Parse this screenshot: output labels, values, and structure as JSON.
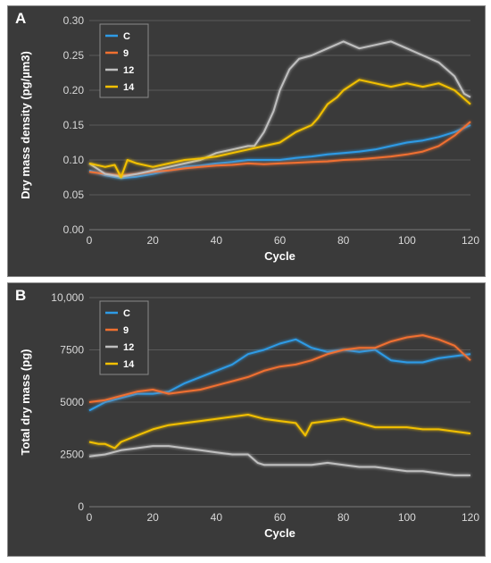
{
  "panels": [
    {
      "letter": "A",
      "chart_data": {
        "type": "line",
        "xlabel": "Cycle",
        "ylabel": "Dry mass density (pg/µm3)",
        "xlim": [
          0,
          120
        ],
        "ylim": [
          0,
          0.3
        ],
        "xticks": [
          0,
          20,
          40,
          60,
          80,
          100,
          120
        ],
        "yticks": [
          0.0,
          0.05,
          0.1,
          0.15,
          0.2,
          0.25,
          0.3
        ],
        "ytick_labels": [
          "0.00",
          "0.05",
          "0.10",
          "0.15",
          "0.20",
          "0.25",
          "0.30"
        ],
        "grid": "horizontal",
        "legend": "top-left",
        "series": [
          {
            "name": "C",
            "color": "#2e9be6",
            "x": [
              0,
              5,
              10,
              15,
              20,
              25,
              30,
              35,
              40,
              45,
              50,
              55,
              60,
              65,
              70,
              75,
              80,
              85,
              90,
              95,
              100,
              105,
              110,
              115,
              120
            ],
            "y": [
              0.085,
              0.078,
              0.074,
              0.076,
              0.08,
              0.085,
              0.09,
              0.092,
              0.095,
              0.097,
              0.1,
              0.1,
              0.1,
              0.103,
              0.105,
              0.108,
              0.11,
              0.112,
              0.115,
              0.12,
              0.125,
              0.128,
              0.133,
              0.14,
              0.15
            ]
          },
          {
            "name": "9",
            "color": "#f07030",
            "x": [
              0,
              5,
              10,
              15,
              20,
              25,
              30,
              35,
              40,
              45,
              50,
              55,
              60,
              65,
              70,
              75,
              80,
              85,
              90,
              95,
              100,
              105,
              110,
              115,
              120
            ],
            "y": [
              0.083,
              0.08,
              0.078,
              0.08,
              0.083,
              0.085,
              0.088,
              0.09,
              0.092,
              0.093,
              0.095,
              0.094,
              0.095,
              0.096,
              0.097,
              0.098,
              0.1,
              0.101,
              0.103,
              0.105,
              0.108,
              0.112,
              0.12,
              0.135,
              0.155
            ]
          },
          {
            "name": "12",
            "color": "#bfbfbf",
            "x": [
              0,
              5,
              10,
              15,
              20,
              25,
              30,
              35,
              40,
              45,
              50,
              52,
              55,
              58,
              60,
              63,
              66,
              70,
              75,
              80,
              85,
              90,
              95,
              100,
              105,
              110,
              115,
              118,
              120
            ],
            "y": [
              0.095,
              0.08,
              0.076,
              0.08,
              0.085,
              0.09,
              0.095,
              0.1,
              0.11,
              0.115,
              0.12,
              0.12,
              0.14,
              0.17,
              0.2,
              0.23,
              0.245,
              0.25,
              0.26,
              0.27,
              0.26,
              0.265,
              0.27,
              0.26,
              0.25,
              0.24,
              0.22,
              0.195,
              0.19
            ]
          },
          {
            "name": "14",
            "color": "#f2c000",
            "x": [
              0,
              3,
              5,
              8,
              10,
              12,
              15,
              20,
              25,
              30,
              35,
              40,
              45,
              50,
              55,
              60,
              65,
              70,
              72,
              75,
              78,
              80,
              85,
              90,
              95,
              100,
              105,
              110,
              115,
              120
            ],
            "y": [
              0.095,
              0.092,
              0.09,
              0.093,
              0.075,
              0.1,
              0.095,
              0.09,
              0.095,
              0.1,
              0.102,
              0.105,
              0.11,
              0.115,
              0.12,
              0.125,
              0.14,
              0.15,
              0.16,
              0.18,
              0.19,
              0.2,
              0.215,
              0.21,
              0.205,
              0.21,
              0.205,
              0.21,
              0.2,
              0.18
            ]
          }
        ]
      }
    },
    {
      "letter": "B",
      "chart_data": {
        "type": "line",
        "xlabel": "Cycle",
        "ylabel": "Total dry mass (pg)",
        "xlim": [
          0,
          120
        ],
        "ylim": [
          0,
          10000
        ],
        "xticks": [
          0,
          20,
          40,
          60,
          80,
          100,
          120
        ],
        "yticks": [
          0,
          2500,
          5000,
          7500,
          10000
        ],
        "ytick_labels": [
          "0",
          "2500",
          "5000",
          "7500",
          "10,000"
        ],
        "grid": "horizontal",
        "legend": "top-left",
        "series": [
          {
            "name": "C",
            "color": "#2e9be6",
            "x": [
              0,
              5,
              10,
              15,
              20,
              25,
              30,
              35,
              40,
              45,
              50,
              55,
              60,
              65,
              70,
              75,
              80,
              85,
              90,
              95,
              100,
              105,
              110,
              115,
              120
            ],
            "y": [
              4600,
              5000,
              5200,
              5400,
              5400,
              5500,
              5900,
              6200,
              6500,
              6800,
              7300,
              7500,
              7800,
              8000,
              7600,
              7400,
              7500,
              7400,
              7500,
              7000,
              6900,
              6900,
              7100,
              7200,
              7300
            ]
          },
          {
            "name": "9",
            "color": "#f07030",
            "x": [
              0,
              5,
              10,
              15,
              20,
              25,
              30,
              35,
              40,
              45,
              50,
              55,
              60,
              65,
              70,
              75,
              80,
              85,
              90,
              95,
              100,
              105,
              110,
              115,
              120
            ],
            "y": [
              5000,
              5100,
              5300,
              5500,
              5600,
              5400,
              5500,
              5600,
              5800,
              6000,
              6200,
              6500,
              6700,
              6800,
              7000,
              7300,
              7500,
              7600,
              7600,
              7900,
              8100,
              8200,
              8000,
              7700,
              7000
            ]
          },
          {
            "name": "12",
            "color": "#bfbfbf",
            "x": [
              0,
              5,
              10,
              15,
              20,
              25,
              30,
              35,
              40,
              45,
              50,
              53,
              55,
              60,
              65,
              70,
              75,
              80,
              85,
              90,
              95,
              100,
              105,
              110,
              115,
              120
            ],
            "y": [
              2400,
              2500,
              2700,
              2800,
              2900,
              2900,
              2800,
              2700,
              2600,
              2500,
              2500,
              2100,
              2000,
              2000,
              2000,
              2000,
              2100,
              2000,
              1900,
              1900,
              1800,
              1700,
              1700,
              1600,
              1500,
              1500
            ]
          },
          {
            "name": "14",
            "color": "#f2c000",
            "x": [
              0,
              3,
              5,
              8,
              10,
              15,
              20,
              25,
              30,
              35,
              40,
              45,
              50,
              55,
              60,
              65,
              68,
              70,
              75,
              80,
              85,
              90,
              95,
              100,
              105,
              110,
              115,
              120
            ],
            "y": [
              3100,
              3000,
              3000,
              2800,
              3100,
              3400,
              3700,
              3900,
              4000,
              4100,
              4200,
              4300,
              4400,
              4200,
              4100,
              4000,
              3400,
              4000,
              4100,
              4200,
              4000,
              3800,
              3800,
              3800,
              3700,
              3700,
              3600,
              3500
            ]
          }
        ]
      }
    }
  ]
}
